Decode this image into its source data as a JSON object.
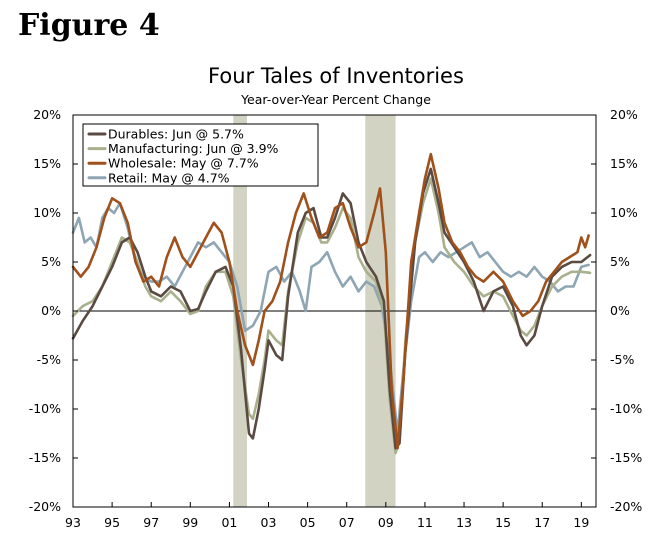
{
  "figure_label": "Figure 4",
  "chart_data": {
    "type": "line",
    "title": "Four Tales of Inventories",
    "subtitle": "Year-over-Year Percent Change",
    "xlabel": "",
    "ylabel": "",
    "ylim": [
      -20,
      20
    ],
    "xlim": [
      1993.0,
      2019.75
    ],
    "y_ticks": [
      20,
      15,
      10,
      5,
      0,
      -5,
      -10,
      -15,
      -20
    ],
    "y_tick_labels": [
      "20%",
      "15%",
      "10%",
      "5%",
      "0%",
      "-5%",
      "-10%",
      "-15%",
      "-20%"
    ],
    "x_ticks": [
      1993,
      1995,
      1997,
      1999,
      2001,
      2003,
      2005,
      2007,
      2009,
      2011,
      2013,
      2015,
      2017,
      2019
    ],
    "x_tick_labels": [
      "93",
      "95",
      "97",
      "99",
      "01",
      "03",
      "05",
      "07",
      "09",
      "11",
      "13",
      "15",
      "17",
      "19"
    ],
    "recessions": [
      [
        2001.2,
        2001.9
      ],
      [
        2007.95,
        2009.5
      ]
    ],
    "colors": {
      "durables": "#5a4a42",
      "manufacturing": "#a8b08c",
      "wholesale": "#a0501a",
      "retail": "#8ea5b4",
      "recession": "#d2d3c3"
    },
    "series": [
      {
        "key": "durables",
        "name": "Durables: Jun @ 5.7%",
        "points": [
          [
            1993.0,
            -2.8
          ],
          [
            1993.5,
            -1.0
          ],
          [
            1994.0,
            0.5
          ],
          [
            1994.5,
            2.5
          ],
          [
            1995.0,
            4.5
          ],
          [
            1995.5,
            7.0
          ],
          [
            1995.9,
            7.5
          ],
          [
            1996.3,
            6.0
          ],
          [
            1996.7,
            3.5
          ],
          [
            1997.0,
            2.0
          ],
          [
            1997.5,
            1.5
          ],
          [
            1998.0,
            2.5
          ],
          [
            1998.5,
            2.0
          ],
          [
            1999.0,
            0.0
          ],
          [
            1999.4,
            0.2
          ],
          [
            1999.8,
            2.0
          ],
          [
            2000.3,
            4.0
          ],
          [
            2000.8,
            4.5
          ],
          [
            2001.2,
            2.5
          ],
          [
            2001.6,
            -4.0
          ],
          [
            2002.0,
            -12.5
          ],
          [
            2002.2,
            -13.0
          ],
          [
            2002.5,
            -10.0
          ],
          [
            2002.8,
            -6.0
          ],
          [
            2003.0,
            -3.0
          ],
          [
            2003.4,
            -4.5
          ],
          [
            2003.7,
            -5.0
          ],
          [
            2004.0,
            1.5
          ],
          [
            2004.5,
            8.0
          ],
          [
            2004.9,
            10.0
          ],
          [
            2005.3,
            10.5
          ],
          [
            2005.7,
            7.5
          ],
          [
            2006.0,
            7.5
          ],
          [
            2006.4,
            9.5
          ],
          [
            2006.8,
            12.0
          ],
          [
            2007.2,
            11.0
          ],
          [
            2007.6,
            7.0
          ],
          [
            2008.0,
            5.0
          ],
          [
            2008.5,
            3.5
          ],
          [
            2008.9,
            1.0
          ],
          [
            2009.2,
            -8.0
          ],
          [
            2009.5,
            -14.0
          ],
          [
            2009.7,
            -13.5
          ],
          [
            2010.0,
            -4.0
          ],
          [
            2010.5,
            7.0
          ],
          [
            2010.9,
            12.0
          ],
          [
            2011.3,
            14.5
          ],
          [
            2011.7,
            11.0
          ],
          [
            2012.0,
            8.0
          ],
          [
            2012.5,
            6.5
          ],
          [
            2013.0,
            5.0
          ],
          [
            2013.5,
            3.0
          ],
          [
            2014.0,
            0.0
          ],
          [
            2014.5,
            2.0
          ],
          [
            2015.0,
            2.5
          ],
          [
            2015.5,
            0.5
          ],
          [
            2015.9,
            -2.5
          ],
          [
            2016.2,
            -3.5
          ],
          [
            2016.6,
            -2.5
          ],
          [
            2017.0,
            0.5
          ],
          [
            2017.5,
            3.5
          ],
          [
            2018.0,
            4.5
          ],
          [
            2018.5,
            5.0
          ],
          [
            2019.0,
            5.0
          ],
          [
            2019.45,
            5.7
          ]
        ]
      },
      {
        "key": "manufacturing",
        "name": "Manufacturing: Jun @ 3.9%",
        "points": [
          [
            1993.0,
            -0.5
          ],
          [
            1993.5,
            0.5
          ],
          [
            1994.0,
            1.0
          ],
          [
            1994.5,
            2.5
          ],
          [
            1995.0,
            5.0
          ],
          [
            1995.5,
            7.5
          ],
          [
            1995.9,
            7.0
          ],
          [
            1996.3,
            5.0
          ],
          [
            1996.7,
            2.5
          ],
          [
            1997.0,
            1.5
          ],
          [
            1997.5,
            1.0
          ],
          [
            1998.0,
            2.0
          ],
          [
            1998.5,
            1.0
          ],
          [
            1999.0,
            -0.3
          ],
          [
            1999.4,
            0.0
          ],
          [
            1999.8,
            2.5
          ],
          [
            2000.3,
            4.0
          ],
          [
            2000.8,
            4.0
          ],
          [
            2001.2,
            1.5
          ],
          [
            2001.6,
            -5.0
          ],
          [
            2002.0,
            -10.5
          ],
          [
            2002.2,
            -11.0
          ],
          [
            2002.5,
            -8.5
          ],
          [
            2002.8,
            -5.0
          ],
          [
            2003.0,
            -2.0
          ],
          [
            2003.4,
            -3.0
          ],
          [
            2003.7,
            -3.5
          ],
          [
            2004.0,
            2.0
          ],
          [
            2004.5,
            7.0
          ],
          [
            2004.9,
            9.5
          ],
          [
            2005.3,
            9.0
          ],
          [
            2005.7,
            7.0
          ],
          [
            2006.0,
            7.0
          ],
          [
            2006.4,
            8.5
          ],
          [
            2006.8,
            10.5
          ],
          [
            2007.2,
            9.5
          ],
          [
            2007.6,
            5.5
          ],
          [
            2008.0,
            4.0
          ],
          [
            2008.5,
            3.0
          ],
          [
            2008.9,
            0.0
          ],
          [
            2009.2,
            -9.0
          ],
          [
            2009.5,
            -14.5
          ],
          [
            2009.7,
            -13.0
          ],
          [
            2010.0,
            -3.0
          ],
          [
            2010.5,
            7.0
          ],
          [
            2010.9,
            11.0
          ],
          [
            2011.3,
            13.5
          ],
          [
            2011.7,
            10.0
          ],
          [
            2012.0,
            6.5
          ],
          [
            2012.5,
            5.0
          ],
          [
            2013.0,
            4.0
          ],
          [
            2013.5,
            2.5
          ],
          [
            2014.0,
            1.5
          ],
          [
            2014.5,
            2.0
          ],
          [
            2015.0,
            1.5
          ],
          [
            2015.5,
            -0.5
          ],
          [
            2015.9,
            -2.0
          ],
          [
            2016.2,
            -2.5
          ],
          [
            2016.6,
            -1.5
          ],
          [
            2017.0,
            0.5
          ],
          [
            2017.5,
            2.5
          ],
          [
            2018.0,
            3.5
          ],
          [
            2018.5,
            4.0
          ],
          [
            2019.0,
            4.0
          ],
          [
            2019.45,
            3.9
          ]
        ]
      },
      {
        "key": "wholesale",
        "name": "Wholesale: May @ 7.7%",
        "points": [
          [
            1993.0,
            4.5
          ],
          [
            1993.4,
            3.5
          ],
          [
            1993.8,
            4.5
          ],
          [
            1994.2,
            6.5
          ],
          [
            1994.6,
            9.5
          ],
          [
            1995.0,
            11.5
          ],
          [
            1995.4,
            11.0
          ],
          [
            1995.8,
            9.0
          ],
          [
            1996.2,
            5.0
          ],
          [
            1996.6,
            3.0
          ],
          [
            1997.0,
            3.5
          ],
          [
            1997.4,
            2.5
          ],
          [
            1997.8,
            5.5
          ],
          [
            1998.2,
            7.5
          ],
          [
            1998.6,
            5.5
          ],
          [
            1999.0,
            4.5
          ],
          [
            1999.4,
            6.0
          ],
          [
            1999.8,
            7.5
          ],
          [
            2000.2,
            9.0
          ],
          [
            2000.6,
            8.0
          ],
          [
            2001.0,
            5.0
          ],
          [
            2001.4,
            0.0
          ],
          [
            2001.8,
            -3.5
          ],
          [
            2002.2,
            -5.5
          ],
          [
            2002.5,
            -3.0
          ],
          [
            2002.8,
            0.0
          ],
          [
            2003.2,
            1.0
          ],
          [
            2003.6,
            3.0
          ],
          [
            2004.0,
            7.0
          ],
          [
            2004.4,
            10.0
          ],
          [
            2004.8,
            12.0
          ],
          [
            2005.2,
            9.5
          ],
          [
            2005.6,
            7.5
          ],
          [
            2006.0,
            8.0
          ],
          [
            2006.4,
            10.5
          ],
          [
            2006.8,
            11.0
          ],
          [
            2007.2,
            8.5
          ],
          [
            2007.6,
            6.5
          ],
          [
            2008.0,
            7.0
          ],
          [
            2008.4,
            10.0
          ],
          [
            2008.7,
            12.5
          ],
          [
            2009.0,
            6.0
          ],
          [
            2009.3,
            -8.0
          ],
          [
            2009.6,
            -14.0
          ],
          [
            2009.9,
            -7.0
          ],
          [
            2010.3,
            5.0
          ],
          [
            2010.7,
            10.0
          ],
          [
            2011.0,
            13.5
          ],
          [
            2011.3,
            16.0
          ],
          [
            2011.7,
            12.5
          ],
          [
            2012.0,
            9.0
          ],
          [
            2012.4,
            7.0
          ],
          [
            2012.8,
            6.0
          ],
          [
            2013.2,
            4.5
          ],
          [
            2013.6,
            3.5
          ],
          [
            2014.0,
            3.0
          ],
          [
            2014.5,
            4.0
          ],
          [
            2015.0,
            3.0
          ],
          [
            2015.5,
            1.0
          ],
          [
            2016.0,
            -0.5
          ],
          [
            2016.4,
            0.0
          ],
          [
            2016.8,
            1.0
          ],
          [
            2017.2,
            3.0
          ],
          [
            2017.6,
            4.0
          ],
          [
            2018.0,
            5.0
          ],
          [
            2018.4,
            5.5
          ],
          [
            2018.8,
            6.0
          ],
          [
            2019.0,
            7.5
          ],
          [
            2019.2,
            6.5
          ],
          [
            2019.37,
            7.7
          ]
        ]
      },
      {
        "key": "retail",
        "name": "Retail: May @ 4.7%",
        "points": [
          [
            1993.0,
            8.0
          ],
          [
            1993.3,
            9.5
          ],
          [
            1993.6,
            7.0
          ],
          [
            1993.9,
            7.5
          ],
          [
            1994.2,
            6.5
          ],
          [
            1994.5,
            9.5
          ],
          [
            1994.8,
            10.5
          ],
          [
            1995.1,
            10.0
          ],
          [
            1995.4,
            11.0
          ],
          [
            1995.8,
            8.5
          ],
          [
            1996.2,
            5.0
          ],
          [
            1996.6,
            3.5
          ],
          [
            1997.0,
            3.0
          ],
          [
            1997.4,
            3.0
          ],
          [
            1997.8,
            3.5
          ],
          [
            1998.2,
            2.5
          ],
          [
            1998.6,
            4.0
          ],
          [
            1999.0,
            5.5
          ],
          [
            1999.4,
            7.0
          ],
          [
            1999.8,
            6.5
          ],
          [
            2000.2,
            7.0
          ],
          [
            2000.6,
            6.0
          ],
          [
            2001.0,
            5.0
          ],
          [
            2001.4,
            2.5
          ],
          [
            2001.8,
            -2.0
          ],
          [
            2002.2,
            -1.5
          ],
          [
            2002.6,
            0.0
          ],
          [
            2003.0,
            4.0
          ],
          [
            2003.4,
            4.5
          ],
          [
            2003.8,
            3.0
          ],
          [
            2004.2,
            4.0
          ],
          [
            2004.6,
            2.0
          ],
          [
            2004.9,
            0.0
          ],
          [
            2005.2,
            4.5
          ],
          [
            2005.6,
            5.0
          ],
          [
            2006.0,
            6.0
          ],
          [
            2006.4,
            4.0
          ],
          [
            2006.8,
            2.5
          ],
          [
            2007.2,
            3.5
          ],
          [
            2007.6,
            2.0
          ],
          [
            2008.0,
            3.0
          ],
          [
            2008.4,
            2.5
          ],
          [
            2008.8,
            0.5
          ],
          [
            2009.2,
            -5.0
          ],
          [
            2009.6,
            -12.5
          ],
          [
            2009.9,
            -6.0
          ],
          [
            2010.3,
            1.0
          ],
          [
            2010.7,
            5.5
          ],
          [
            2011.0,
            6.0
          ],
          [
            2011.4,
            5.0
          ],
          [
            2011.8,
            6.0
          ],
          [
            2012.2,
            5.5
          ],
          [
            2012.6,
            6.0
          ],
          [
            2013.0,
            6.5
          ],
          [
            2013.4,
            7.0
          ],
          [
            2013.8,
            5.5
          ],
          [
            2014.2,
            6.0
          ],
          [
            2014.6,
            5.0
          ],
          [
            2015.0,
            4.0
          ],
          [
            2015.4,
            3.5
          ],
          [
            2015.8,
            4.0
          ],
          [
            2016.2,
            3.5
          ],
          [
            2016.6,
            4.5
          ],
          [
            2017.0,
            3.5
          ],
          [
            2017.4,
            3.0
          ],
          [
            2017.8,
            2.0
          ],
          [
            2018.2,
            2.5
          ],
          [
            2018.6,
            2.5
          ],
          [
            2019.0,
            4.5
          ],
          [
            2019.37,
            4.7
          ]
        ]
      }
    ]
  }
}
